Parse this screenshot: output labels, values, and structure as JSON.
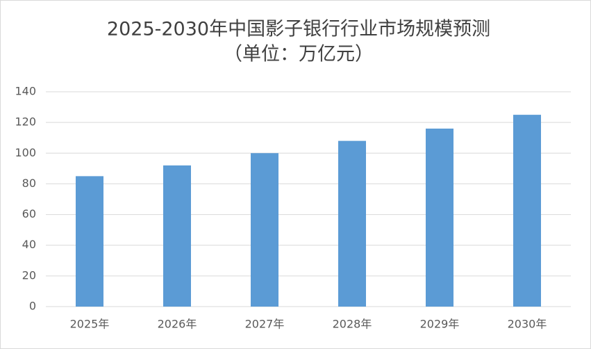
{
  "chart_data": {
    "type": "bar",
    "title": "2025-2030年中国影子银行行业市场规模预测",
    "subtitle": "（单位：万亿元）",
    "categories": [
      "2025年",
      "2026年",
      "2027年",
      "2028年",
      "2029年",
      "2030年"
    ],
    "values": [
      85,
      92,
      100,
      108,
      116,
      125
    ],
    "color": "#5b9bd5",
    "ylim": [
      0,
      140
    ],
    "yticks": [
      0,
      20,
      40,
      60,
      80,
      100,
      120,
      140
    ],
    "grid": true
  }
}
